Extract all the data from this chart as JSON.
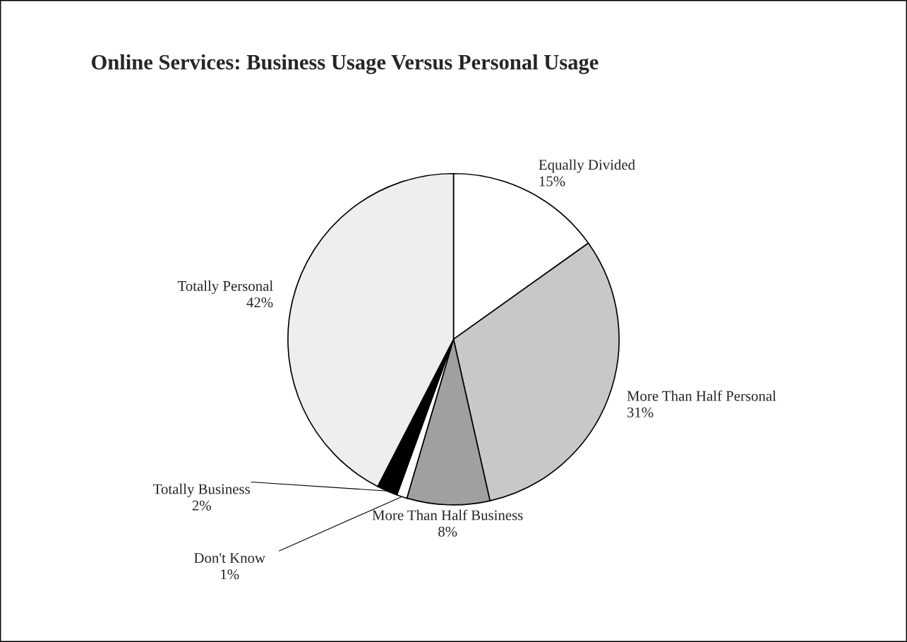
{
  "chart_data": {
    "type": "pie",
    "title": "Online Services: Business Usage Versus Personal Usage",
    "categories": [
      "Equally Divided",
      "More Than Half Personal",
      "More Than Half Business",
      "Don't Know",
      "Totally Business",
      "Totally Personal"
    ],
    "values": [
      15,
      31,
      8,
      1,
      2,
      42
    ],
    "value_labels": [
      "15%",
      "31%",
      "8%",
      "1%",
      "2%",
      "42%"
    ],
    "colors": [
      "#ffffff",
      "#c8c8c8",
      "#a0a0a0",
      "#ffffff",
      "#000000",
      "#eeeeee"
    ]
  }
}
